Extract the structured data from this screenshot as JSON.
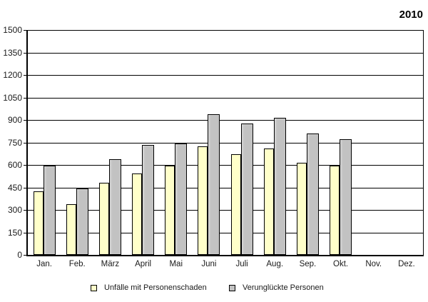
{
  "title": "2010",
  "chart_data": {
    "type": "bar",
    "title": "2010",
    "categories": [
      "Jan.",
      "Feb.",
      "März",
      "April",
      "Mai",
      "Juni",
      "Juli",
      "Aug.",
      "Sep.",
      "Okt.",
      "Nov.",
      "Dez."
    ],
    "series": [
      {
        "name": "Unfälle mit Personenschaden",
        "color": "#FFFFC9",
        "values": [
          425,
          340,
          480,
          545,
          595,
          725,
          670,
          710,
          615,
          595,
          null,
          null
        ]
      },
      {
        "name": "Verunglückte Personen",
        "color": "#C2C2C2",
        "values": [
          595,
          445,
          640,
          735,
          745,
          940,
          875,
          915,
          810,
          770,
          null,
          null
        ]
      }
    ],
    "xlabel": "",
    "ylabel": "",
    "ylim": [
      0,
      1500
    ],
    "yticks": [
      0,
      150,
      300,
      450,
      600,
      750,
      900,
      1050,
      1200,
      1350,
      1500
    ],
    "grid": true,
    "legend_position": "bottom"
  }
}
